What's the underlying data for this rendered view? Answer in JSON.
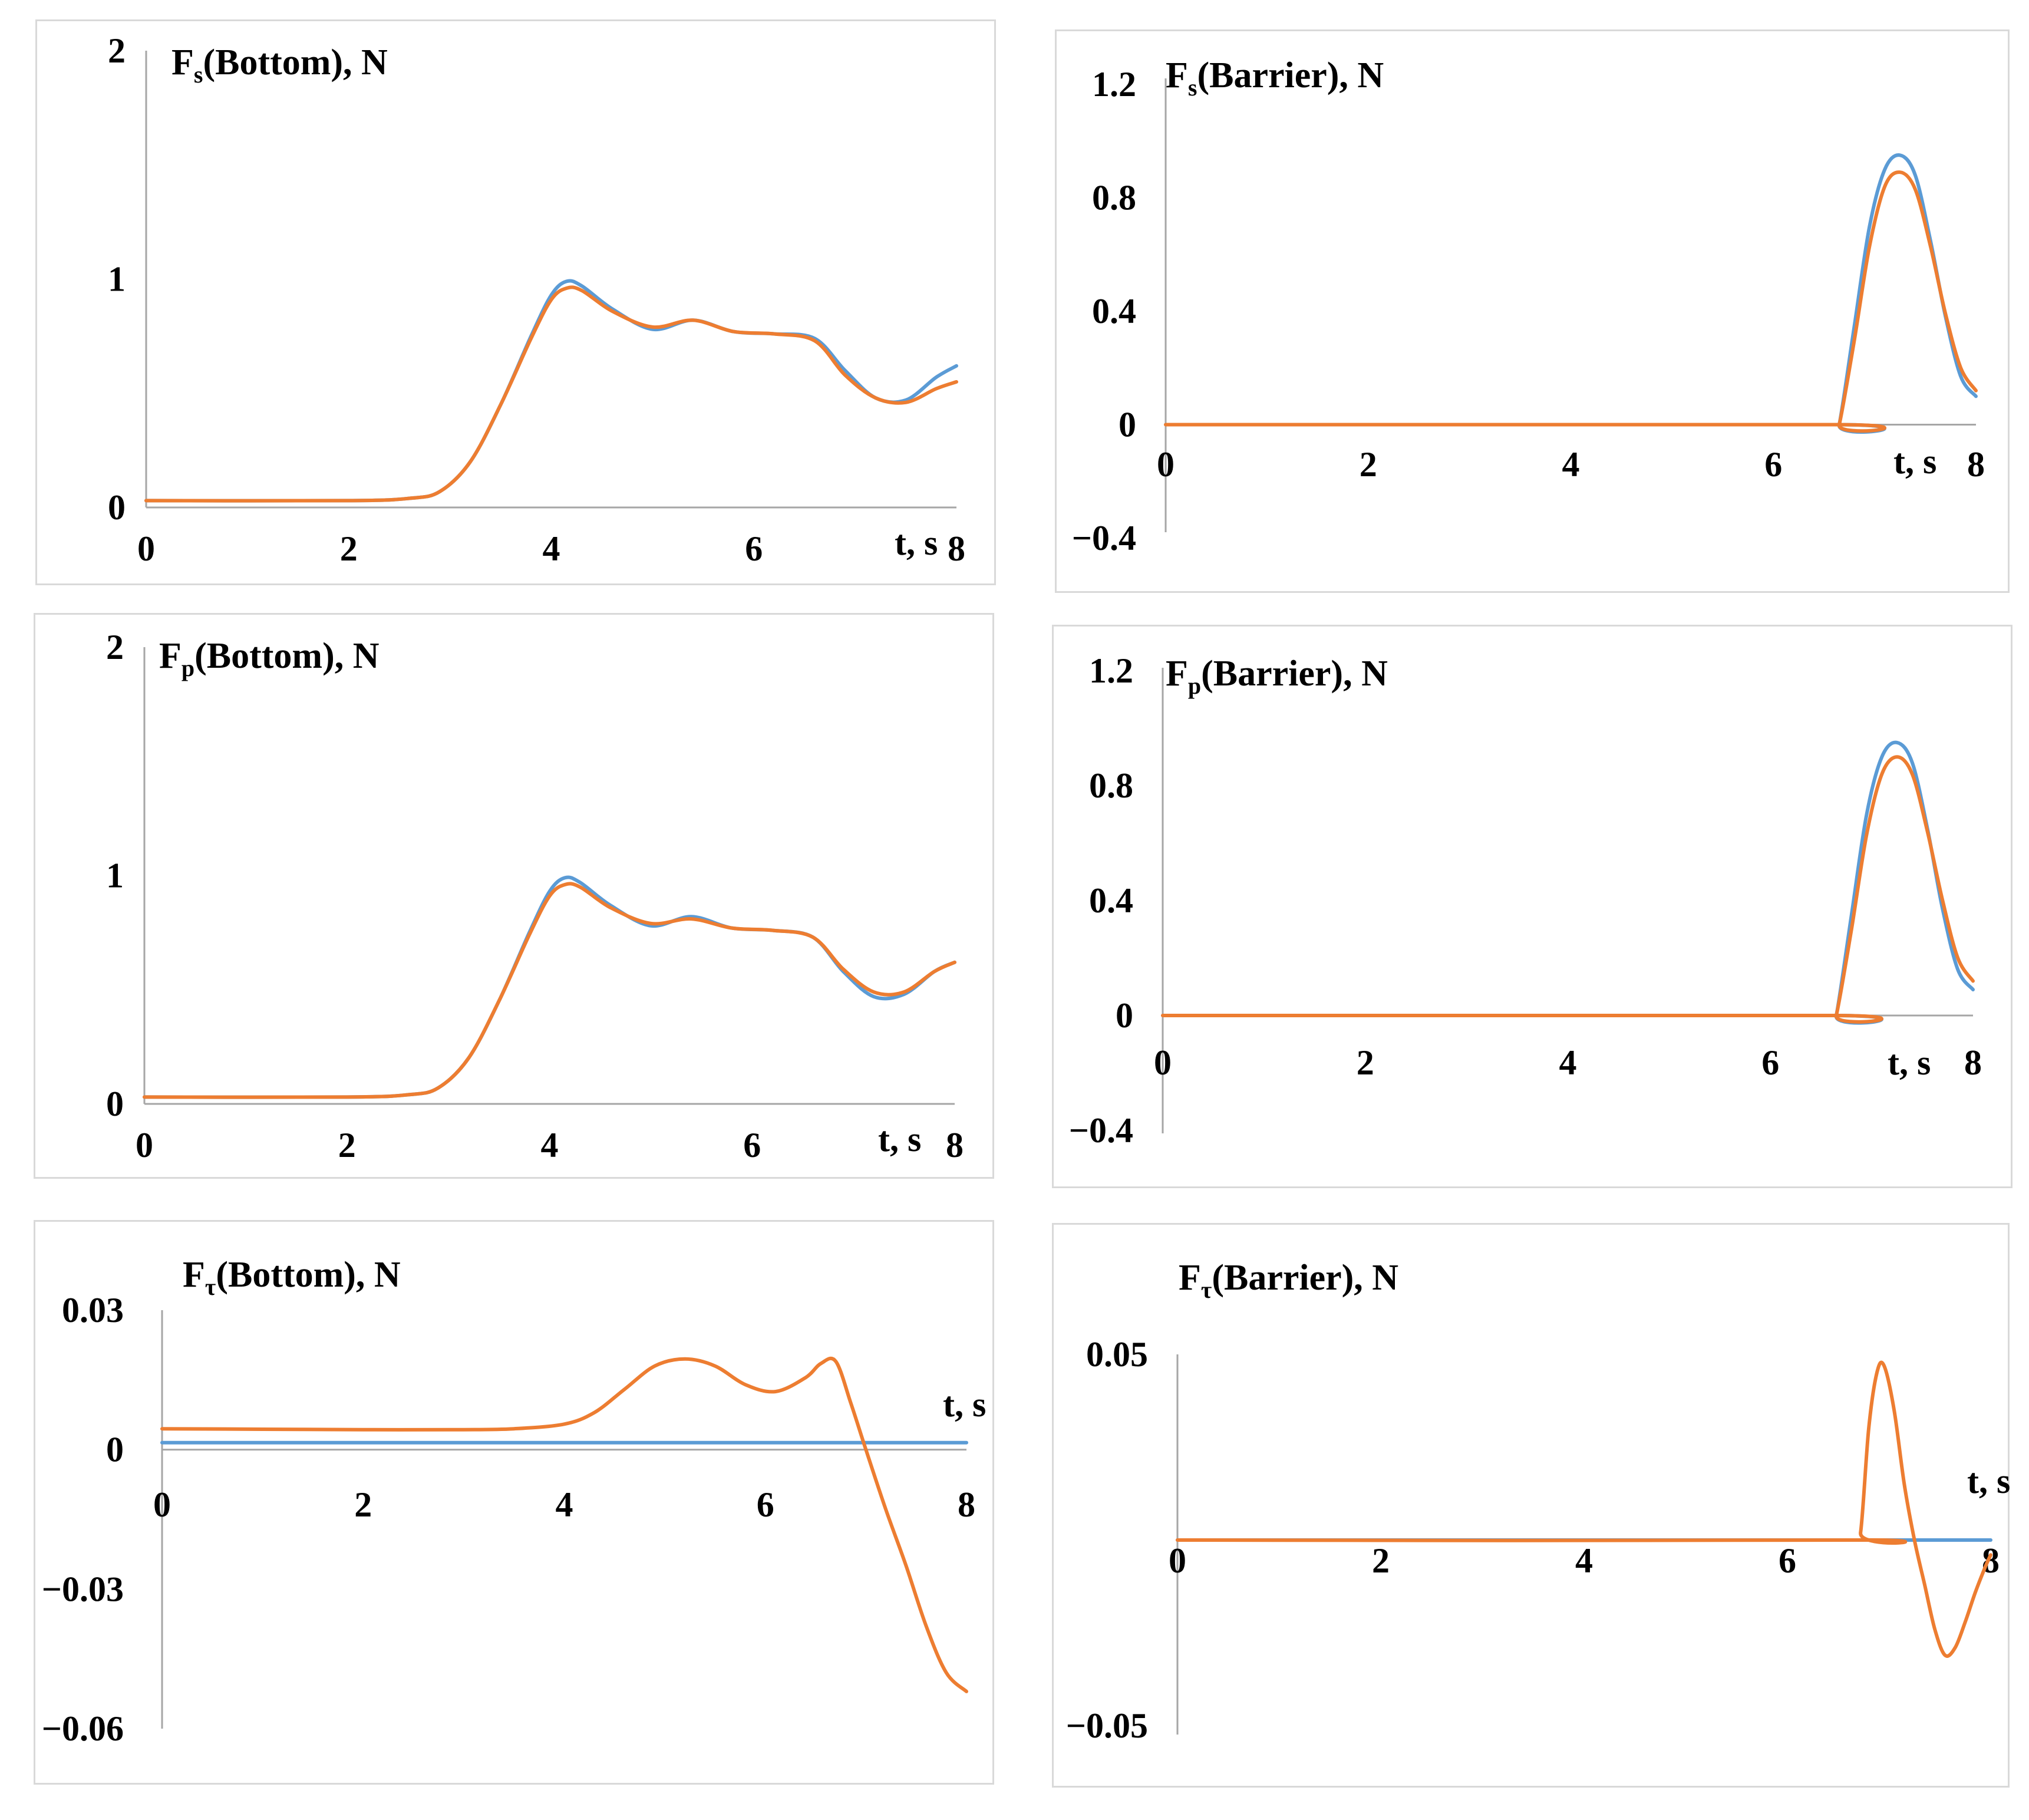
{
  "chart_data": [
    {
      "id": "fs-bottom",
      "type": "line",
      "title": {
        "main": "F",
        "sub": "s",
        "rest": "(Bottom), N"
      },
      "xlabel": "t, s",
      "xlim": [
        0,
        8
      ],
      "ylim": [
        0,
        2
      ],
      "x_ticks": [
        {
          "v": 0,
          "label": "0"
        },
        {
          "v": 2,
          "label": "2"
        },
        {
          "v": 4,
          "label": "4"
        },
        {
          "v": 6,
          "label": "6"
        },
        {
          "v": 8,
          "label": "8"
        }
      ],
      "y_ticks": [
        {
          "v": 0,
          "label": "0"
        },
        {
          "v": 1,
          "label": "1"
        },
        {
          "v": 2,
          "label": "2"
        }
      ],
      "colors": {
        "series1": "#5b9bd5",
        "series2": "#ed7d31"
      },
      "series": [
        {
          "name": "series1",
          "x": [
            0,
            2,
            2.6,
            2.9,
            3.2,
            3.5,
            3.8,
            4.0,
            4.15,
            4.3,
            4.6,
            5.0,
            5.4,
            5.8,
            6.2,
            6.6,
            6.9,
            7.2,
            7.5,
            7.8,
            8.0
          ],
          "y": [
            0.03,
            0.03,
            0.04,
            0.07,
            0.2,
            0.45,
            0.75,
            0.93,
            0.99,
            0.97,
            0.87,
            0.78,
            0.82,
            0.77,
            0.76,
            0.74,
            0.6,
            0.48,
            0.47,
            0.57,
            0.62
          ]
        },
        {
          "name": "series2",
          "x": [
            0,
            2,
            2.6,
            2.9,
            3.2,
            3.5,
            3.8,
            4.0,
            4.15,
            4.3,
            4.6,
            5.0,
            5.4,
            5.8,
            6.2,
            6.6,
            6.9,
            7.2,
            7.5,
            7.8,
            8.0
          ],
          "y": [
            0.03,
            0.03,
            0.04,
            0.07,
            0.2,
            0.45,
            0.74,
            0.91,
            0.96,
            0.95,
            0.86,
            0.79,
            0.82,
            0.77,
            0.76,
            0.73,
            0.58,
            0.48,
            0.46,
            0.52,
            0.55
          ]
        }
      ]
    },
    {
      "id": "fs-barrier",
      "type": "line",
      "title": {
        "main": "F",
        "sub": "s",
        "rest": "(Barrier), N"
      },
      "xlabel": "t, s",
      "xlim": [
        0,
        8
      ],
      "ylim": [
        -0.4,
        1.2
      ],
      "x_ticks": [
        {
          "v": 0,
          "label": "0"
        },
        {
          "v": 2,
          "label": "2"
        },
        {
          "v": 4,
          "label": "4"
        },
        {
          "v": 6,
          "label": "6"
        },
        {
          "v": 8,
          "label": "8"
        }
      ],
      "y_ticks": [
        {
          "v": -0.4,
          "label": "−0.4"
        },
        {
          "v": 0,
          "label": "0"
        },
        {
          "v": 0.4,
          "label": "0.4"
        },
        {
          "v": 0.8,
          "label": "0.8"
        },
        {
          "v": 1.2,
          "label": "1.2"
        }
      ],
      "colors": {
        "series1": "#5b9bd5",
        "series2": "#ed7d31"
      },
      "series": [
        {
          "name": "series1",
          "x": [
            0,
            6.6,
            6.65,
            6.8,
            6.95,
            7.1,
            7.25,
            7.4,
            7.55,
            7.7,
            7.85,
            8.0
          ],
          "y": [
            0,
            0,
            0.0,
            0.35,
            0.7,
            0.9,
            0.95,
            0.88,
            0.65,
            0.38,
            0.17,
            0.1
          ]
        },
        {
          "name": "series2",
          "x": [
            0,
            6.6,
            6.65,
            6.8,
            6.95,
            7.1,
            7.25,
            7.4,
            7.55,
            7.7,
            7.85,
            8.0
          ],
          "y": [
            0,
            0,
            0.0,
            0.3,
            0.63,
            0.84,
            0.89,
            0.83,
            0.63,
            0.39,
            0.2,
            0.12
          ]
        }
      ]
    },
    {
      "id": "fp-bottom",
      "type": "line",
      "title": {
        "main": "F",
        "sub": "p",
        "rest": "(Bottom), N"
      },
      "xlabel": "t, s",
      "xlim": [
        0,
        8
      ],
      "ylim": [
        0,
        2
      ],
      "x_ticks": [
        {
          "v": 0,
          "label": "0"
        },
        {
          "v": 2,
          "label": "2"
        },
        {
          "v": 4,
          "label": "4"
        },
        {
          "v": 6,
          "label": "6"
        },
        {
          "v": 8,
          "label": "8"
        }
      ],
      "y_ticks": [
        {
          "v": 0,
          "label": "0"
        },
        {
          "v": 1,
          "label": "1"
        },
        {
          "v": 2,
          "label": "2"
        }
      ],
      "colors": {
        "series1": "#5b9bd5",
        "series2": "#ed7d31"
      },
      "series": [
        {
          "name": "series1",
          "x": [
            0,
            2,
            2.6,
            2.9,
            3.2,
            3.5,
            3.8,
            4.0,
            4.15,
            4.3,
            4.6,
            5.0,
            5.4,
            5.8,
            6.2,
            6.6,
            6.9,
            7.2,
            7.5,
            7.8,
            8.0
          ],
          "y": [
            0.03,
            0.03,
            0.04,
            0.07,
            0.2,
            0.45,
            0.75,
            0.93,
            0.99,
            0.97,
            0.87,
            0.78,
            0.82,
            0.77,
            0.76,
            0.73,
            0.58,
            0.47,
            0.48,
            0.58,
            0.62
          ]
        },
        {
          "name": "series2",
          "x": [
            0,
            2,
            2.6,
            2.9,
            3.2,
            3.5,
            3.8,
            4.0,
            4.15,
            4.3,
            4.6,
            5.0,
            5.4,
            5.8,
            6.2,
            6.6,
            6.9,
            7.2,
            7.5,
            7.8,
            8.0
          ],
          "y": [
            0.03,
            0.03,
            0.04,
            0.07,
            0.2,
            0.45,
            0.74,
            0.91,
            0.96,
            0.95,
            0.86,
            0.79,
            0.81,
            0.77,
            0.76,
            0.73,
            0.59,
            0.49,
            0.49,
            0.58,
            0.62
          ]
        }
      ]
    },
    {
      "id": "fp-barrier",
      "type": "line",
      "title": {
        "main": "F",
        "sub": "p",
        "rest": "(Barrier), N"
      },
      "xlabel": "t, s",
      "xlim": [
        0,
        8
      ],
      "ylim": [
        -0.4,
        1.2
      ],
      "x_ticks": [
        {
          "v": 0,
          "label": "0"
        },
        {
          "v": 2,
          "label": "2"
        },
        {
          "v": 4,
          "label": "4"
        },
        {
          "v": 6,
          "label": "6"
        },
        {
          "v": 8,
          "label": "8"
        }
      ],
      "y_ticks": [
        {
          "v": -0.4,
          "label": "−0.4"
        },
        {
          "v": 0,
          "label": "0"
        },
        {
          "v": 0.4,
          "label": "0.4"
        },
        {
          "v": 0.8,
          "label": "0.8"
        },
        {
          "v": 1.2,
          "label": "1.2"
        }
      ],
      "colors": {
        "series1": "#5b9bd5",
        "series2": "#ed7d31"
      },
      "series": [
        {
          "name": "series1",
          "x": [
            0,
            6.6,
            6.65,
            6.8,
            6.95,
            7.1,
            7.25,
            7.4,
            7.55,
            7.7,
            7.85,
            8.0
          ],
          "y": [
            0,
            0,
            0.0,
            0.35,
            0.7,
            0.9,
            0.95,
            0.88,
            0.65,
            0.37,
            0.16,
            0.09
          ]
        },
        {
          "name": "series2",
          "x": [
            0,
            6.6,
            6.65,
            6.8,
            6.95,
            7.1,
            7.25,
            7.4,
            7.55,
            7.7,
            7.85,
            8.0
          ],
          "y": [
            0,
            0,
            0.0,
            0.3,
            0.63,
            0.84,
            0.9,
            0.84,
            0.64,
            0.4,
            0.2,
            0.12
          ]
        }
      ]
    },
    {
      "id": "ft-bottom",
      "type": "line",
      "title": {
        "main": "F",
        "sub": "τ",
        "rest": "(Bottom), N"
      },
      "xlabel": "t, s",
      "xlim": [
        0,
        8
      ],
      "ylim": [
        -0.06,
        0.03
      ],
      "x_ticks": [
        {
          "v": 0,
          "label": "0"
        },
        {
          "v": 2,
          "label": "2"
        },
        {
          "v": 4,
          "label": "4"
        },
        {
          "v": 6,
          "label": "6"
        },
        {
          "v": 8,
          "label": "8"
        }
      ],
      "y_ticks": [
        {
          "v": -0.06,
          "label": "−0.06"
        },
        {
          "v": -0.03,
          "label": "−0.03"
        },
        {
          "v": 0,
          "label": "0"
        },
        {
          "v": 0.03,
          "label": "0.03"
        }
      ],
      "colors": {
        "series1": "#5b9bd5",
        "series2": "#ed7d31"
      },
      "series": [
        {
          "name": "series1",
          "x": [
            0,
            8
          ],
          "y": [
            0.0015,
            0.0015
          ]
        },
        {
          "name": "series2",
          "x": [
            0,
            1,
            2,
            3,
            3.5,
            4.0,
            4.3,
            4.6,
            4.9,
            5.2,
            5.5,
            5.8,
            6.1,
            6.4,
            6.55,
            6.7,
            6.85,
            7.0,
            7.2,
            7.4,
            7.6,
            7.8,
            8.0
          ],
          "y": [
            0.0045,
            0.0044,
            0.0043,
            0.0043,
            0.0045,
            0.0055,
            0.008,
            0.013,
            0.018,
            0.0195,
            0.018,
            0.014,
            0.0125,
            0.0155,
            0.0185,
            0.019,
            0.01,
            0.0,
            -0.013,
            -0.025,
            -0.038,
            -0.048,
            -0.052
          ]
        }
      ]
    },
    {
      "id": "ft-barrier",
      "type": "line",
      "title": {
        "main": "F",
        "sub": "τ",
        "rest": "(Barrier), N"
      },
      "xlabel": "t, s",
      "xlim": [
        0,
        8
      ],
      "ylim": [
        -0.05,
        0.05
      ],
      "x_ticks": [
        {
          "v": 0,
          "label": "0"
        },
        {
          "v": 2,
          "label": "2"
        },
        {
          "v": 4,
          "label": "4"
        },
        {
          "v": 6,
          "label": "6"
        },
        {
          "v": 8,
          "label": "8"
        }
      ],
      "y_ticks": [
        {
          "v": -0.05,
          "label": "−0.05"
        },
        {
          "v": 0.05,
          "label": "0.05"
        }
      ],
      "colors": {
        "series1": "#5b9bd5",
        "series2": "#ed7d31"
      },
      "series": [
        {
          "name": "series1",
          "x": [
            0,
            8
          ],
          "y": [
            0,
            0
          ]
        },
        {
          "name": "series2",
          "x": [
            0,
            6.65,
            6.72,
            6.8,
            6.88,
            6.95,
            7.05,
            7.15,
            7.25,
            7.35,
            7.45,
            7.55,
            7.65,
            7.75,
            7.85,
            7.95,
            8.0
          ],
          "y": [
            0,
            0,
            0.002,
            0.03,
            0.045,
            0.047,
            0.035,
            0.015,
            0.0,
            -0.012,
            -0.024,
            -0.031,
            -0.029,
            -0.022,
            -0.014,
            -0.007,
            -0.004
          ]
        }
      ]
    }
  ]
}
